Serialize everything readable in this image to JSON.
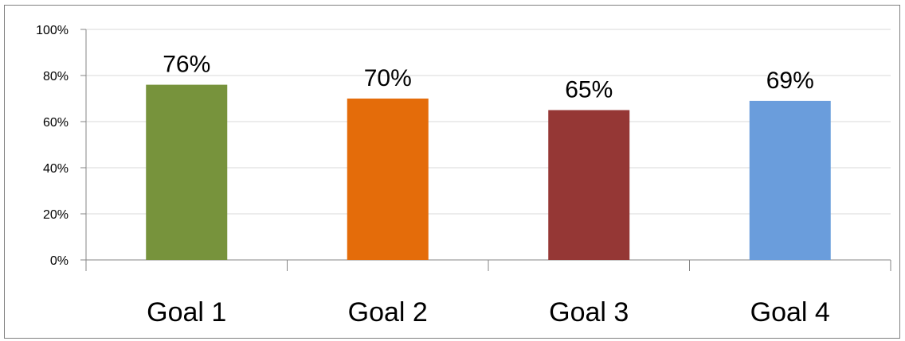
{
  "chart_data": {
    "type": "bar",
    "title": "",
    "categories": [
      "Goal 1",
      "Goal 2",
      "Goal 3",
      "Goal 4"
    ],
    "values": [
      76,
      70,
      65,
      69
    ],
    "data_labels": [
      "76%",
      "70%",
      "65%",
      "69%"
    ],
    "colors": [
      "#77933c",
      "#e46c0a",
      "#953735",
      "#6a9ddc"
    ],
    "y_ticks": [
      "0%",
      "20%",
      "40%",
      "60%",
      "80%",
      "100%"
    ],
    "ylim": [
      0,
      100
    ],
    "grid": true,
    "legend": "none",
    "xlabel": "",
    "ylabel": ""
  }
}
